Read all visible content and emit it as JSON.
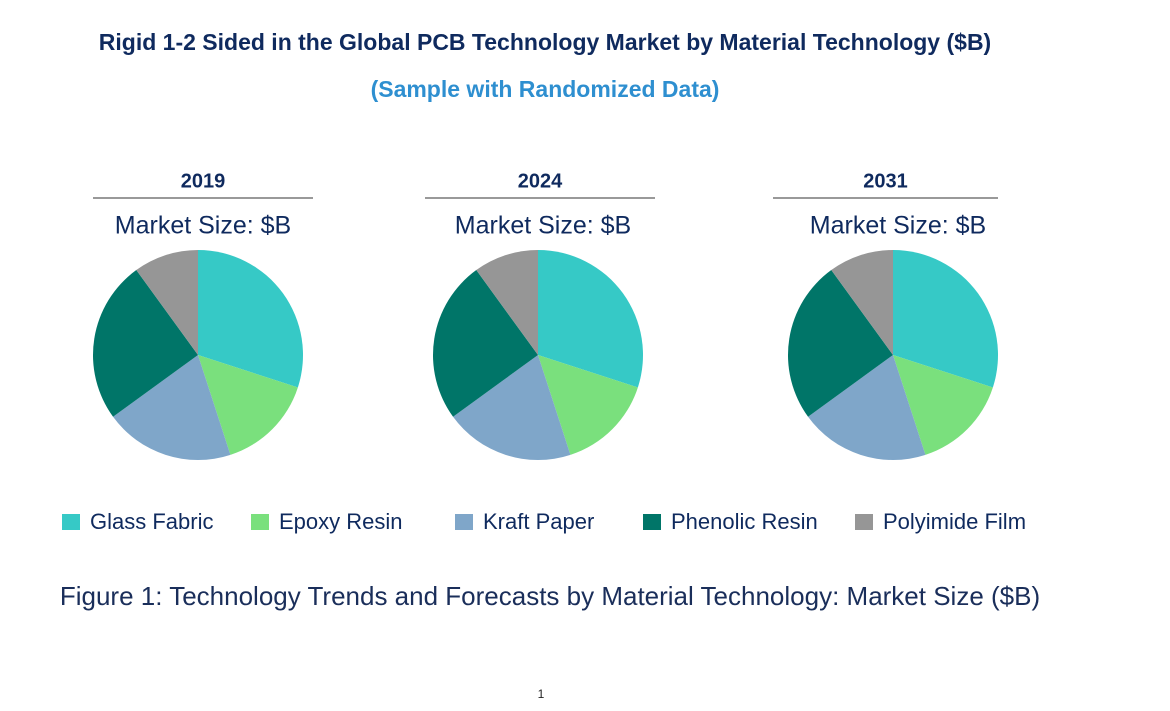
{
  "header": {
    "title": "Rigid 1-2 Sided in the Global PCB Technology Market by Material Technology ($B)",
    "subtitle": "(Sample with Randomized Data)"
  },
  "chart_data": [
    {
      "type": "pie",
      "title": "2019",
      "subtitle": "Market Size: $B",
      "categories": [
        "Glass Fabric",
        "Epoxy Resin",
        "Kraft Paper",
        "Phenolic Resin",
        "Polyimide Film"
      ],
      "values": [
        30,
        15,
        20,
        25,
        10
      ],
      "colors": [
        "#36c9c6",
        "#7ae07d",
        "#7fa6c9",
        "#007568",
        "#969696"
      ]
    },
    {
      "type": "pie",
      "title": "2024",
      "subtitle": "Market Size: $B",
      "categories": [
        "Glass Fabric",
        "Epoxy Resin",
        "Kraft Paper",
        "Phenolic Resin",
        "Polyimide Film"
      ],
      "values": [
        30,
        15,
        20,
        25,
        10
      ],
      "colors": [
        "#36c9c6",
        "#7ae07d",
        "#7fa6c9",
        "#007568",
        "#969696"
      ]
    },
    {
      "type": "pie",
      "title": "2031",
      "subtitle": "Market Size: $B",
      "categories": [
        "Glass Fabric",
        "Epoxy Resin",
        "Kraft Paper",
        "Phenolic Resin",
        "Polyimide Film"
      ],
      "values": [
        30,
        15,
        20,
        25,
        10
      ],
      "colors": [
        "#36c9c6",
        "#7ae07d",
        "#7fa6c9",
        "#007568",
        "#969696"
      ]
    }
  ],
  "caption": "Figure 1: Technology Trends and Forecasts by Material Technology: Market Size ($B)",
  "footer": {
    "page": "1"
  }
}
